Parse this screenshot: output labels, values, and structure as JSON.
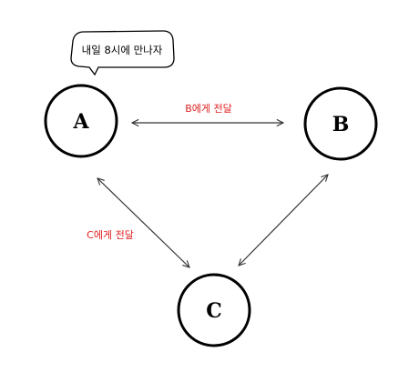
{
  "nodes": {
    "a": {
      "label": "A"
    },
    "b": {
      "label": "B"
    },
    "c": {
      "label": "C"
    }
  },
  "edges": {
    "ab": {
      "label": "B에게 전달"
    },
    "ac": {
      "label": "C에게 전달"
    }
  },
  "speech_bubble": {
    "text": "내일 8시에 만나자"
  },
  "colors": {
    "stroke": "#000000",
    "arrow": "#333333",
    "edge_label": "#e02020",
    "background": "#ffffff"
  }
}
